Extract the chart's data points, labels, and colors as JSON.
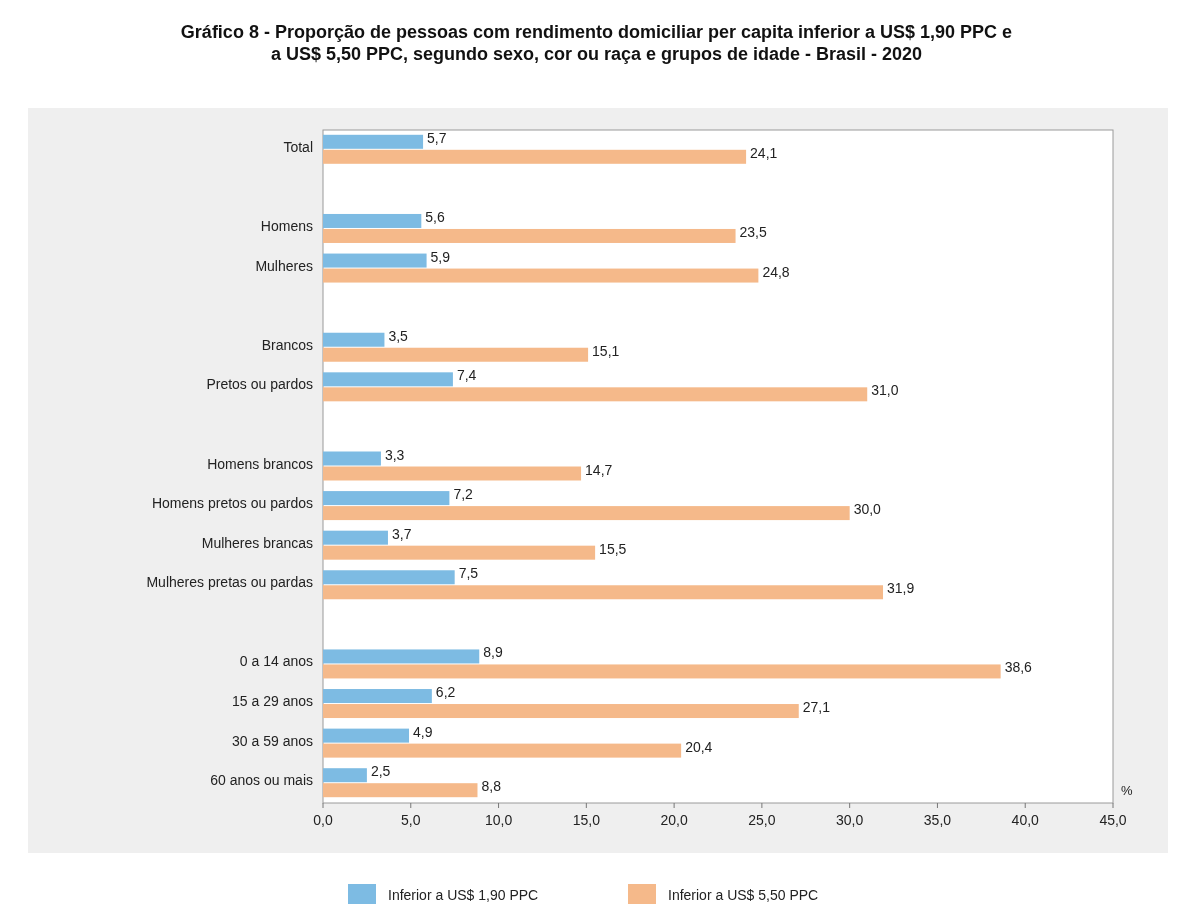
{
  "chart_data": {
    "type": "bar",
    "orientation": "horizontal",
    "title": "Gráfico 8 - Proporção de pessoas com rendimento domiciliar per capita inferior a US$ 1,90 PPC e a US$ 5,50 PPC, segundo sexo, cor ou raça e grupos de idade - Brasil - 2020",
    "xlabel": "%",
    "categories": [
      "Total",
      null,
      "Homens",
      "Mulheres",
      null,
      "Brancos",
      "Pretos ou pardos",
      null,
      "Homens brancos",
      "Homens pretos ou pardos",
      "Mulheres brancas",
      "Mulheres pretas ou pardas",
      null,
      "0 a 14 anos",
      "15 a 29 anos",
      "30 a 59 anos",
      "60 anos ou mais"
    ],
    "series": [
      {
        "name": "Inferior a US$ 1,90 PPC",
        "color": "#7dbbe3",
        "values": [
          5.7,
          null,
          5.6,
          5.9,
          null,
          3.5,
          7.4,
          null,
          3.3,
          7.2,
          3.7,
          7.5,
          null,
          8.9,
          6.2,
          4.9,
          2.5
        ],
        "value_labels": [
          "5,7",
          null,
          "5,6",
          "5,9",
          null,
          "3,5",
          "7,4",
          null,
          "3,3",
          "7,2",
          "3,7",
          "7,5",
          null,
          "8,9",
          "6,2",
          "4,9",
          "2,5"
        ]
      },
      {
        "name": "Inferior a US$ 5,50 PPC",
        "color": "#f5b98a",
        "values": [
          24.1,
          null,
          23.5,
          24.8,
          null,
          15.1,
          31.0,
          null,
          14.7,
          30.0,
          15.5,
          31.9,
          null,
          38.6,
          27.1,
          20.4,
          8.8
        ],
        "value_labels": [
          "24,1",
          null,
          "23,5",
          "24,8",
          null,
          "15,1",
          "31,0",
          null,
          "14,7",
          "30,0",
          "15,5",
          "31,9",
          null,
          "38,6",
          "27,1",
          "20,4",
          "8,8"
        ]
      }
    ],
    "xlim": [
      0,
      45
    ],
    "xticks": [
      {
        "value": 0,
        "label": "0,0"
      },
      {
        "value": 5,
        "label": "5,0"
      },
      {
        "value": 10,
        "label": "10,0"
      },
      {
        "value": 15,
        "label": "15,0"
      },
      {
        "value": 20,
        "label": "20,0"
      },
      {
        "value": 25,
        "label": "25,0"
      },
      {
        "value": 30,
        "label": "30,0"
      },
      {
        "value": 35,
        "label": "35,0"
      },
      {
        "value": 40,
        "label": "40,0"
      },
      {
        "value": 45,
        "label": "45,0"
      }
    ],
    "grid": false,
    "legend": "bottom"
  }
}
